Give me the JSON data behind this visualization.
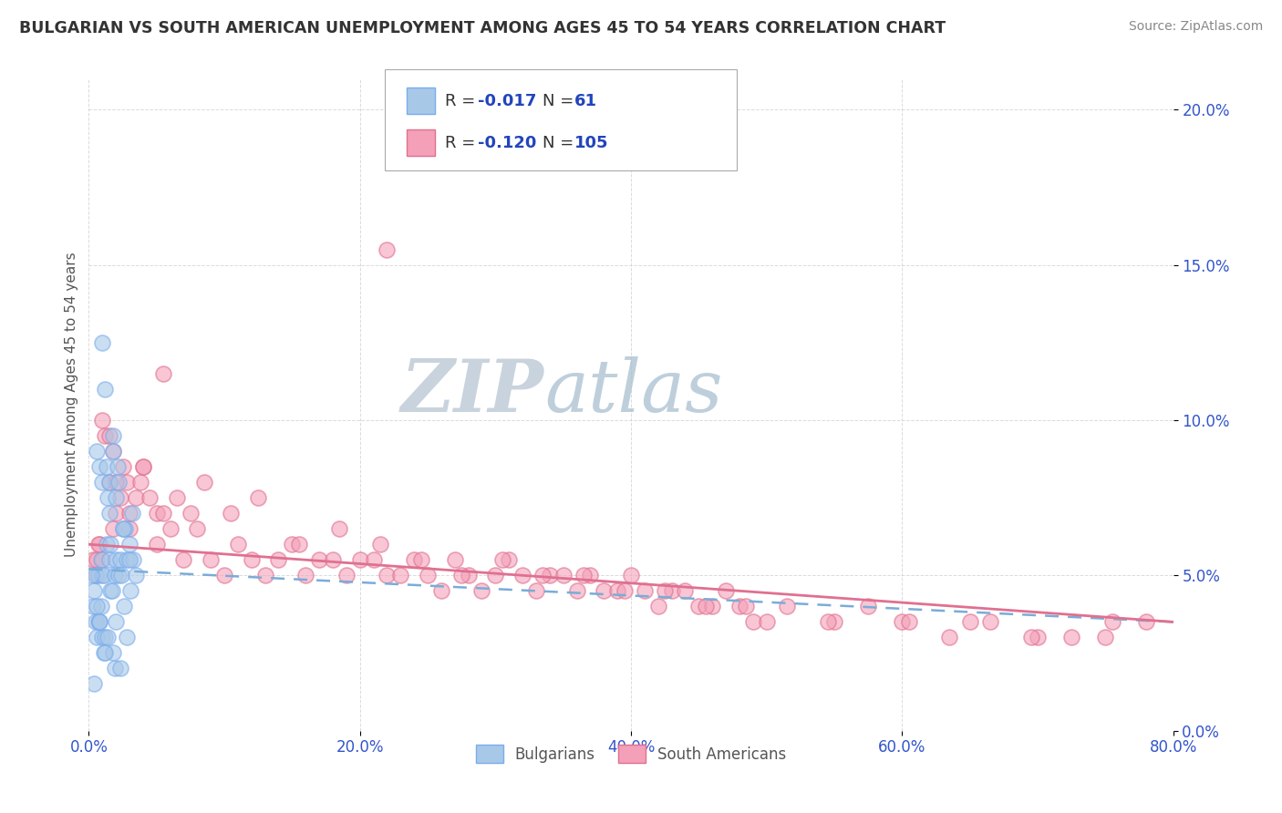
{
  "title": "BULGARIAN VS SOUTH AMERICAN UNEMPLOYMENT AMONG AGES 45 TO 54 YEARS CORRELATION CHART",
  "source": "Source: ZipAtlas.com",
  "ylabel": "Unemployment Among Ages 45 to 54 years",
  "r_bulgarian": -0.017,
  "n_bulgarian": 61,
  "r_south_american": -0.12,
  "n_south_american": 105,
  "color_bulgarian_fill": "#a8c8e8",
  "color_bulgarian_edge": "#7aaceE",
  "color_sa_fill": "#f4a0b8",
  "color_sa_edge": "#e07090",
  "color_trend_bulgarian": "#7aacd8",
  "color_trend_sa": "#e07090",
  "watermark_zip_color": "#c8d8e8",
  "watermark_atlas_color": "#b8ccdc",
  "legend_r_color": "#2244bb",
  "legend_n_color": "#2244bb",
  "bg_color": "#ffffff",
  "grid_color": "#cccccc",
  "tick_color": "#3355cc",
  "title_color": "#333333",
  "source_color": "#888888",
  "ylabel_color": "#555555",
  "bulgarians_x": [
    0.3,
    0.4,
    0.5,
    0.5,
    0.6,
    0.6,
    0.7,
    0.7,
    0.8,
    0.8,
    0.9,
    0.9,
    1.0,
    1.0,
    1.0,
    1.1,
    1.1,
    1.2,
    1.2,
    1.3,
    1.3,
    1.4,
    1.4,
    1.5,
    1.5,
    1.6,
    1.6,
    1.7,
    1.8,
    1.8,
    1.9,
    1.9,
    2.0,
    2.0,
    2.1,
    2.2,
    2.2,
    2.3,
    2.3,
    2.4,
    2.5,
    2.6,
    2.7,
    2.8,
    2.8,
    3.0,
    3.1,
    3.2,
    3.3,
    3.5,
    0.2,
    0.4,
    0.6,
    0.8,
    1.0,
    1.2,
    1.5,
    1.8,
    2.0,
    2.5,
    3.0
  ],
  "bulgarians_y": [
    4.0,
    4.5,
    5.0,
    3.5,
    3.0,
    9.0,
    3.5,
    5.0,
    3.5,
    8.5,
    4.0,
    5.5,
    5.0,
    3.0,
    8.0,
    2.5,
    5.0,
    11.0,
    3.0,
    6.0,
    8.5,
    3.0,
    7.5,
    5.5,
    8.0,
    4.5,
    6.0,
    4.5,
    2.5,
    9.5,
    2.0,
    5.0,
    5.5,
    3.5,
    8.5,
    5.0,
    8.0,
    2.0,
    5.5,
    5.0,
    6.5,
    4.0,
    6.5,
    3.0,
    5.5,
    6.0,
    4.5,
    7.0,
    5.5,
    5.0,
    5.0,
    1.5,
    4.0,
    3.5,
    12.5,
    2.5,
    7.0,
    9.0,
    7.5,
    6.5,
    5.5
  ],
  "sa_x": [
    0.3,
    0.5,
    0.6,
    0.8,
    1.0,
    1.0,
    1.2,
    1.5,
    1.8,
    2.0,
    2.3,
    2.5,
    2.8,
    3.0,
    3.5,
    3.8,
    4.0,
    4.5,
    5.0,
    5.5,
    6.0,
    7.0,
    7.5,
    8.0,
    9.0,
    10.0,
    11.0,
    12.0,
    13.0,
    14.0,
    15.0,
    16.0,
    17.0,
    18.0,
    19.0,
    20.0,
    21.0,
    22.0,
    23.0,
    24.0,
    25.0,
    26.0,
    27.0,
    28.0,
    29.0,
    30.0,
    31.0,
    32.0,
    33.0,
    34.0,
    35.0,
    36.0,
    37.0,
    38.0,
    39.0,
    40.0,
    41.0,
    42.0,
    43.0,
    44.0,
    45.0,
    46.0,
    47.0,
    48.0,
    49.0,
    50.0,
    55.0,
    60.0,
    65.0,
    70.0,
    75.0,
    78.0,
    1.5,
    2.0,
    3.0,
    4.0,
    5.0,
    6.5,
    8.5,
    10.5,
    12.5,
    15.5,
    18.5,
    21.5,
    24.5,
    27.5,
    30.5,
    33.5,
    36.5,
    39.5,
    42.5,
    45.5,
    48.5,
    51.5,
    54.5,
    57.5,
    60.5,
    63.5,
    66.5,
    69.5,
    72.5,
    75.5,
    0.7,
    1.8,
    5.5,
    22.0
  ],
  "sa_y": [
    5.5,
    5.0,
    5.5,
    6.0,
    5.5,
    10.0,
    9.5,
    8.0,
    9.0,
    7.0,
    7.5,
    8.5,
    8.0,
    7.0,
    7.5,
    8.0,
    8.5,
    7.5,
    7.0,
    7.0,
    6.5,
    5.5,
    7.0,
    6.5,
    5.5,
    5.0,
    6.0,
    5.5,
    5.0,
    5.5,
    6.0,
    5.0,
    5.5,
    5.5,
    5.0,
    5.5,
    5.5,
    5.0,
    5.0,
    5.5,
    5.0,
    4.5,
    5.5,
    5.0,
    4.5,
    5.0,
    5.5,
    5.0,
    4.5,
    5.0,
    5.0,
    4.5,
    5.0,
    4.5,
    4.5,
    5.0,
    4.5,
    4.0,
    4.5,
    4.5,
    4.0,
    4.0,
    4.5,
    4.0,
    3.5,
    3.5,
    3.5,
    3.5,
    3.5,
    3.0,
    3.0,
    3.5,
    9.5,
    8.0,
    6.5,
    8.5,
    6.0,
    7.5,
    8.0,
    7.0,
    7.5,
    6.0,
    6.5,
    6.0,
    5.5,
    5.0,
    5.5,
    5.0,
    5.0,
    4.5,
    4.5,
    4.0,
    4.0,
    4.0,
    3.5,
    4.0,
    3.5,
    3.0,
    3.5,
    3.0,
    3.0,
    3.5,
    6.0,
    6.5,
    11.5,
    15.5
  ],
  "xlim": [
    0,
    80
  ],
  "ylim": [
    0,
    21
  ],
  "xticks": [
    0,
    20,
    40,
    60,
    80
  ],
  "yticks": [
    0,
    5,
    10,
    15,
    20
  ],
  "trend_b_x0": 0,
  "trend_b_x1": 80,
  "trend_b_y0": 5.2,
  "trend_b_y1": 3.5,
  "trend_sa_x0": 0,
  "trend_sa_x1": 80,
  "trend_sa_y0": 6.0,
  "trend_sa_y1": 3.5
}
